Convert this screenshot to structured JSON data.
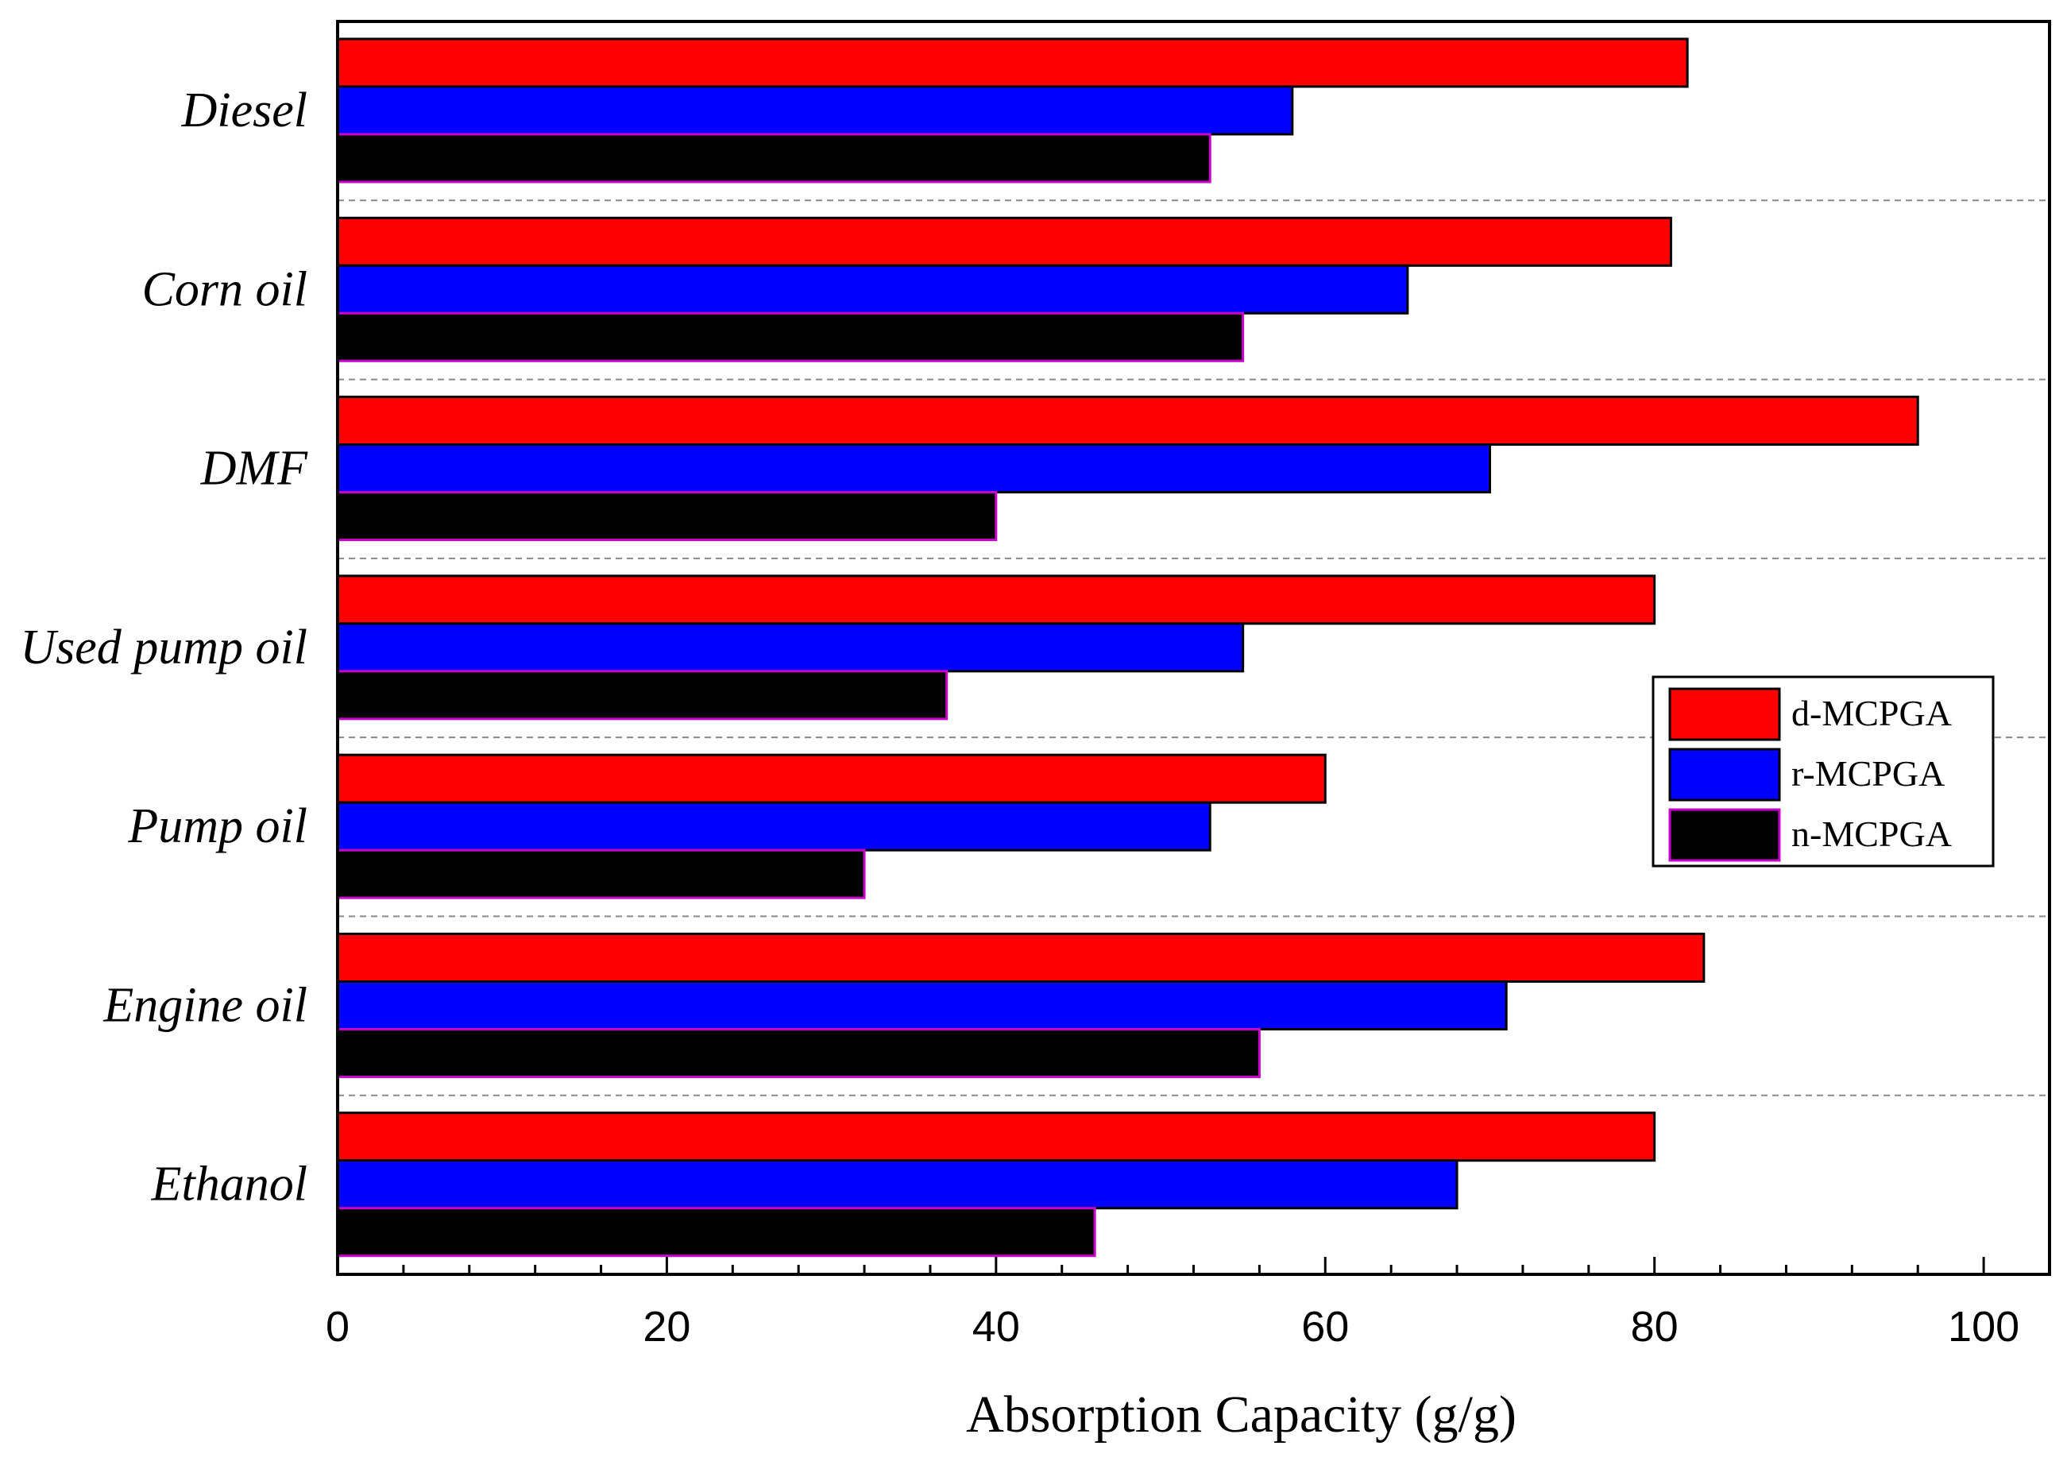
{
  "chart_data": {
    "type": "bar",
    "orientation": "horizontal",
    "categories": [
      "Diesel",
      "Corn oil",
      "DMF",
      "Used pump oil",
      "Pump oil",
      "Engine oil",
      "Ethanol"
    ],
    "series": [
      {
        "name": "d-MCPGA",
        "values": [
          82,
          81,
          96,
          80,
          60,
          83,
          80
        ],
        "color": "#ff0000"
      },
      {
        "name": "r-MCPGA",
        "values": [
          58,
          65,
          70,
          55,
          53,
          71,
          68
        ],
        "color": "#0000ff"
      },
      {
        "name": "n-MCPGA",
        "values": [
          53,
          55,
          40,
          37,
          32,
          56,
          46
        ],
        "color": "#000000",
        "edge_color": "#cc00cc"
      }
    ],
    "xlabel": "Absorption Capacity (g/g)",
    "ylabel": "",
    "xlim": [
      0,
      104
    ],
    "x_ticks": [
      "0",
      "20",
      "40",
      "60",
      "80",
      "100"
    ],
    "grid": "dashed separators between categories",
    "legend": "right"
  }
}
